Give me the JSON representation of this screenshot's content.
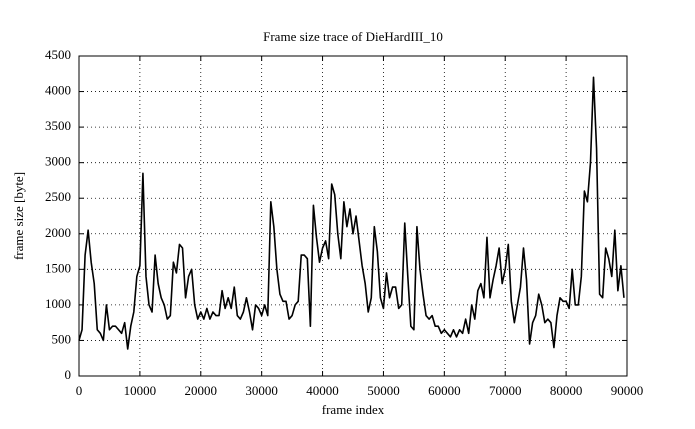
{
  "chart_data": {
    "type": "line",
    "title": "Frame size trace of DieHardIII_10",
    "x_label": "frame index",
    "y_label": "frame size [byte]",
    "x": [
      0,
      500,
      1000,
      1500,
      2000,
      2500,
      3000,
      3500,
      4000,
      4500,
      5000,
      5500,
      6000,
      6500,
      7000,
      7500,
      8000,
      8500,
      9000,
      9500,
      10000,
      10500,
      11000,
      11500,
      12000,
      12500,
      13000,
      13500,
      14000,
      14500,
      15000,
      15500,
      16000,
      16500,
      17000,
      17500,
      18000,
      18500,
      19000,
      19500,
      20000,
      20500,
      21000,
      21500,
      22000,
      22500,
      23000,
      23500,
      24000,
      24500,
      25000,
      25500,
      26000,
      26500,
      27000,
      27500,
      28000,
      28500,
      29000,
      29500,
      30000,
      30500,
      31000,
      31500,
      32000,
      32500,
      33000,
      33500,
      34000,
      34500,
      35000,
      35500,
      36000,
      36500,
      37000,
      37500,
      38000,
      38500,
      39000,
      39500,
      40000,
      40500,
      41000,
      41500,
      42000,
      42500,
      43000,
      43500,
      44000,
      44500,
      45000,
      45500,
      46000,
      46500,
      47000,
      47500,
      48000,
      48500,
      49000,
      49500,
      50000,
      50500,
      51000,
      51500,
      52000,
      52500,
      53000,
      53500,
      54000,
      54500,
      55000,
      55500,
      56000,
      56500,
      57000,
      57500,
      58000,
      58500,
      59000,
      59500,
      60000,
      60500,
      61000,
      61500,
      62000,
      62500,
      63000,
      63500,
      64000,
      64500,
      65000,
      65500,
      66000,
      66500,
      67000,
      67500,
      68000,
      68500,
      69000,
      69500,
      70000,
      70500,
      71000,
      71500,
      72000,
      72500,
      73000,
      73500,
      74000,
      74500,
      75000,
      75500,
      76000,
      76500,
      77000,
      77500,
      78000,
      78500,
      79000,
      79500,
      80000,
      80500,
      81000,
      81500,
      82000,
      82500,
      83000,
      83500,
      84000,
      84500,
      85000,
      85500,
      86000,
      86500,
      87000,
      87500,
      88000,
      88500,
      89000,
      89500
    ],
    "series": [
      {
        "color": "#000000",
        "values": [
          500,
          650,
          1700,
          2050,
          1600,
          1300,
          650,
          600,
          500,
          1000,
          650,
          700,
          700,
          650,
          600,
          750,
          380,
          700,
          900,
          1400,
          1550,
          2850,
          1400,
          1000,
          900,
          1700,
          1300,
          1100,
          1000,
          800,
          850,
          1600,
          1450,
          1850,
          1800,
          1100,
          1400,
          1500,
          1000,
          800,
          900,
          800,
          950,
          800,
          900,
          850,
          850,
          1200,
          950,
          1100,
          950,
          1250,
          850,
          800,
          900,
          1100,
          900,
          650,
          1000,
          950,
          850,
          1000,
          850,
          2450,
          2100,
          1500,
          1150,
          1050,
          1050,
          800,
          850,
          1000,
          1050,
          1700,
          1700,
          1650,
          700,
          2400,
          1950,
          1600,
          1800,
          1900,
          1650,
          2700,
          2550,
          2000,
          1650,
          2450,
          2100,
          2350,
          2000,
          2250,
          1900,
          1550,
          1300,
          900,
          1100,
          2100,
          1750,
          1100,
          950,
          1450,
          1100,
          1250,
          1250,
          950,
          1000,
          2150,
          1400,
          700,
          650,
          2100,
          1500,
          1150,
          850,
          800,
          850,
          700,
          700,
          600,
          650,
          600,
          550,
          650,
          550,
          650,
          600,
          800,
          600,
          1000,
          800,
          1200,
          1300,
          1100,
          1950,
          1100,
          1350,
          1550,
          1800,
          1300,
          1500,
          1850,
          1050,
          750,
          1000,
          1250,
          1800,
          1350,
          450,
          750,
          850,
          1150,
          1000,
          750,
          800,
          750,
          400,
          850,
          1100,
          1050,
          1050,
          950,
          1500,
          1000,
          1000,
          1400,
          2600,
          2450,
          3000,
          4200,
          3200,
          1150,
          1100,
          1800,
          1650,
          1400,
          2050,
          1200,
          1550,
          1100
        ]
      }
    ],
    "xlim": [
      0,
      90000
    ],
    "ylim": [
      0,
      4500
    ],
    "xticks": [
      0,
      10000,
      20000,
      30000,
      40000,
      50000,
      60000,
      70000,
      80000,
      90000
    ],
    "yticks": [
      0,
      500,
      1000,
      1500,
      2000,
      2500,
      3000,
      3500,
      4000,
      4500
    ],
    "grid": true
  }
}
